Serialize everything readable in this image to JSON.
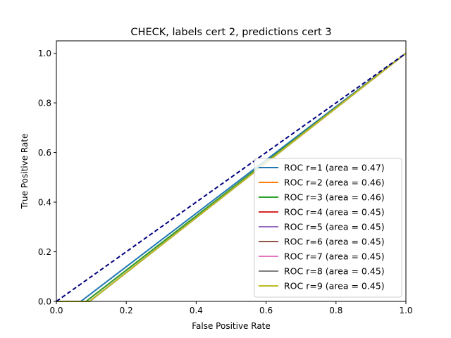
{
  "chart_data": {
    "type": "line",
    "title": "CHECK, labels cert 2, predictions cert 3",
    "xlabel": "False Positive Rate",
    "ylabel": "True Positive Rate",
    "xlim": [
      0.0,
      1.0
    ],
    "ylim": [
      0.0,
      1.05
    ],
    "x_ticks": [
      0.0,
      0.2,
      0.4,
      0.6,
      0.8,
      1.0
    ],
    "x_tick_labels": [
      "0.0",
      "0.2",
      "0.4",
      "0.6",
      "0.8",
      "1.0"
    ],
    "y_ticks": [
      0.0,
      0.2,
      0.4,
      0.6,
      0.8,
      1.0
    ],
    "y_tick_labels": [
      "0.0",
      "0.2",
      "0.4",
      "0.6",
      "0.8",
      "1.0"
    ],
    "grid": false,
    "legend_position": "lower-right",
    "series": [
      {
        "name": "ROC r=1 (area = 0.47)",
        "color": "#1f77b4",
        "x": [
          0.0,
          0.07,
          1.0
        ],
        "y": [
          0.0,
          0.0,
          1.0
        ]
      },
      {
        "name": "ROC r=2 (area = 0.46)",
        "color": "#ff7f0e",
        "x": [
          0.0,
          0.085,
          1.0
        ],
        "y": [
          0.0,
          0.0,
          1.0
        ]
      },
      {
        "name": "ROC r=3 (area = 0.46)",
        "color": "#2ca02c",
        "x": [
          0.0,
          0.085,
          1.0
        ],
        "y": [
          0.0,
          0.0,
          1.0
        ]
      },
      {
        "name": "ROC r=4 (area = 0.45)",
        "color": "#d62728",
        "x": [
          0.0,
          0.095,
          1.0
        ],
        "y": [
          0.0,
          0.0,
          1.0
        ]
      },
      {
        "name": "ROC r=5 (area = 0.45)",
        "color": "#9467bd",
        "x": [
          0.0,
          0.095,
          1.0
        ],
        "y": [
          0.0,
          0.0,
          1.0
        ]
      },
      {
        "name": "ROC r=6 (area = 0.45)",
        "color": "#8c564b",
        "x": [
          0.0,
          0.095,
          1.0
        ],
        "y": [
          0.0,
          0.0,
          1.0
        ]
      },
      {
        "name": "ROC r=7 (area = 0.45)",
        "color": "#e377c2",
        "x": [
          0.0,
          0.095,
          1.0
        ],
        "y": [
          0.0,
          0.0,
          1.0
        ]
      },
      {
        "name": "ROC r=8 (area = 0.45)",
        "color": "#7f7f7f",
        "x": [
          0.0,
          0.095,
          1.0
        ],
        "y": [
          0.0,
          0.0,
          1.0
        ]
      },
      {
        "name": "ROC r=9 (area = 0.45)",
        "color": "#bcbd22",
        "x": [
          0.0,
          0.095,
          1.0
        ],
        "y": [
          0.0,
          0.0,
          1.0
        ]
      }
    ],
    "reference_line": {
      "color": "#000080",
      "style": "dashed",
      "x": [
        0.0,
        1.0
      ],
      "y": [
        0.0,
        1.0
      ]
    }
  }
}
